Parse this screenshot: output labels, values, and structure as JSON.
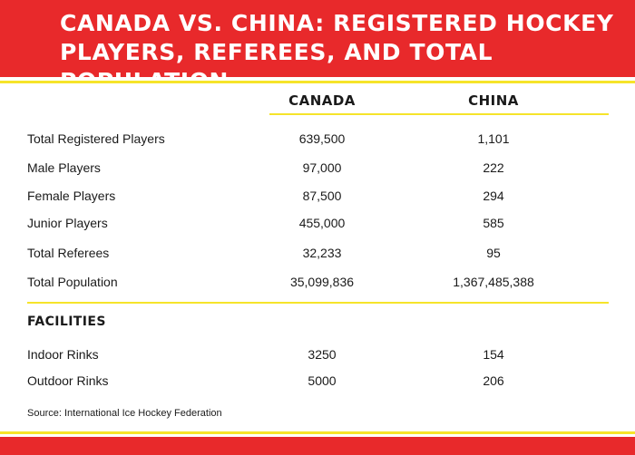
{
  "title": "CANADA VS. CHINA: REGISTERED HOCKEY PLAYERS, REFEREES, AND TOTAL POPULATION",
  "columns": {
    "canada": "CANADA",
    "china": "CHINA"
  },
  "rows": [
    {
      "label": "Total Registered Players",
      "canada": "639,500",
      "china": "1,101"
    },
    {
      "label": "Male Players",
      "canada": "97,000",
      "china": "222"
    },
    {
      "label": "Female Players",
      "canada": "87,500",
      "china": "294"
    },
    {
      "label": "Junior Players",
      "canada": "455,000",
      "china": "585"
    },
    {
      "label": "Total Referees",
      "canada": "32,233",
      "china": "95"
    },
    {
      "label": "Total Population",
      "canada": "35,099,836",
      "china": "1,367,485,388"
    }
  ],
  "facilities": {
    "heading": "FACILITIES",
    "rows": [
      {
        "label": "Indoor Rinks",
        "canada": "3250",
        "china": "154"
      },
      {
        "label": "Outdoor Rinks",
        "canada": "5000",
        "china": "206"
      }
    ]
  },
  "source": "Source: International Ice Hockey Federation",
  "colors": {
    "red": "#e8292b",
    "yellow": "#f6e42a",
    "text": "#1a1a1a"
  }
}
